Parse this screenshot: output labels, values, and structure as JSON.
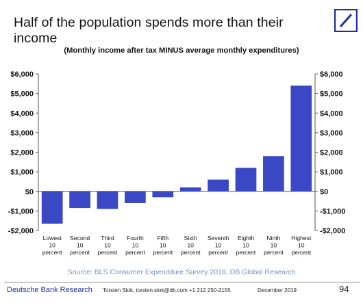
{
  "slide": {
    "title": "Half of the population spends more than their income",
    "subtitle": "(Monthly income after tax MINUS average monthly expenditures)",
    "source": "Source: BLS Consumer Expenditure Survey 2018, DB Global Research",
    "footer": {
      "brand": "Deutsche Bank Research",
      "author": "Torsten Slok, torsten.slok@db.com +1 212 250-2155",
      "date": "December 2019",
      "page": "94"
    }
  },
  "colors": {
    "bar": "#3b48c6",
    "axis": "#555555",
    "brand": "#1f2f9c",
    "source": "#6f8fc4"
  },
  "chart_data": {
    "type": "bar",
    "title": "Half of the population spends more than their income",
    "subtitle": "(Monthly income after tax MINUS average monthly expenditures)",
    "categories": [
      [
        "Lowest",
        "10",
        "percent"
      ],
      [
        "Second",
        "10",
        "percent"
      ],
      [
        "Third",
        "10",
        "percent"
      ],
      [
        "Fourth",
        "10",
        "percent"
      ],
      [
        "Fifth",
        "10",
        "percent"
      ],
      [
        "Sixth",
        "10",
        "percent"
      ],
      [
        "Seventh",
        "10",
        "percent"
      ],
      [
        "Eighth",
        "10",
        "percent"
      ],
      [
        "Ninth",
        "10",
        "percent"
      ],
      [
        "Highest",
        "10",
        "percent"
      ]
    ],
    "values": [
      -1650,
      -850,
      -900,
      -600,
      -300,
      200,
      600,
      1200,
      1800,
      5400
    ],
    "ylim": [
      -2000,
      6000
    ],
    "yticks": [
      -2000,
      -1000,
      0,
      1000,
      2000,
      3000,
      4000,
      5000,
      6000
    ],
    "ytick_labels": [
      "-$2,000",
      "-$1,000",
      "$0",
      "$1,000",
      "$2,000",
      "$3,000",
      "$4,000",
      "$5,000",
      "$6,000"
    ],
    "axes": [
      "left",
      "right"
    ],
    "grid": false,
    "legend": "none"
  }
}
